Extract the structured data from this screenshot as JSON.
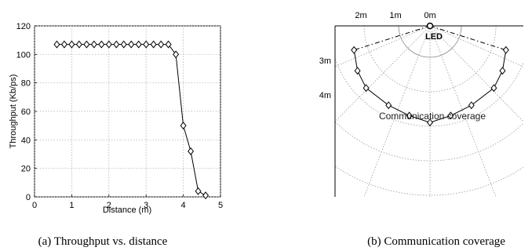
{
  "chart_data": [
    {
      "type": "line",
      "title": "",
      "xlabel": "Distance (m)",
      "ylabel": "Throughput (Kb/ps)",
      "xlim": [
        0,
        5
      ],
      "ylim": [
        0,
        120
      ],
      "xticks": [
        0,
        1,
        2,
        3,
        4,
        5
      ],
      "yticks": [
        0,
        20,
        40,
        60,
        80,
        100,
        120
      ],
      "grid": true,
      "marker": "diamond",
      "series": [
        {
          "x": [
            0.6,
            0.8,
            1.0,
            1.2,
            1.4,
            1.6,
            1.8,
            2.0,
            2.2,
            2.4,
            2.6,
            2.8,
            3.0,
            3.2,
            3.4,
            3.6,
            3.8,
            4.0,
            4.2,
            4.4,
            4.6
          ],
          "values": [
            107,
            107,
            107,
            107,
            107,
            107,
            107,
            107,
            107,
            107,
            107,
            107,
            107,
            107,
            107,
            107,
            100,
            50,
            32,
            4,
            1
          ]
        }
      ],
      "caption": "(a) Throughput vs. distance"
    },
    {
      "type": "scatter",
      "title": "",
      "polar_grid": true,
      "horizontal_ticks": [
        "2m",
        "1m",
        "0m"
      ],
      "vertical_ticks": [
        "3m",
        "4m"
      ],
      "source_label": "LED",
      "annotation": "Communication coverage",
      "marker": "diamond",
      "boundary_points": {
        "x": [
          -2.2,
          -2.1,
          -1.85,
          -1.2,
          -0.6,
          0.0,
          0.6,
          1.2,
          1.85,
          2.1,
          2.2
        ],
        "y": [
          2.7,
          3.3,
          3.8,
          4.3,
          4.6,
          4.8,
          4.6,
          4.3,
          3.8,
          3.3,
          2.7
        ]
      },
      "caption": "(b) Communication coverage"
    }
  ]
}
